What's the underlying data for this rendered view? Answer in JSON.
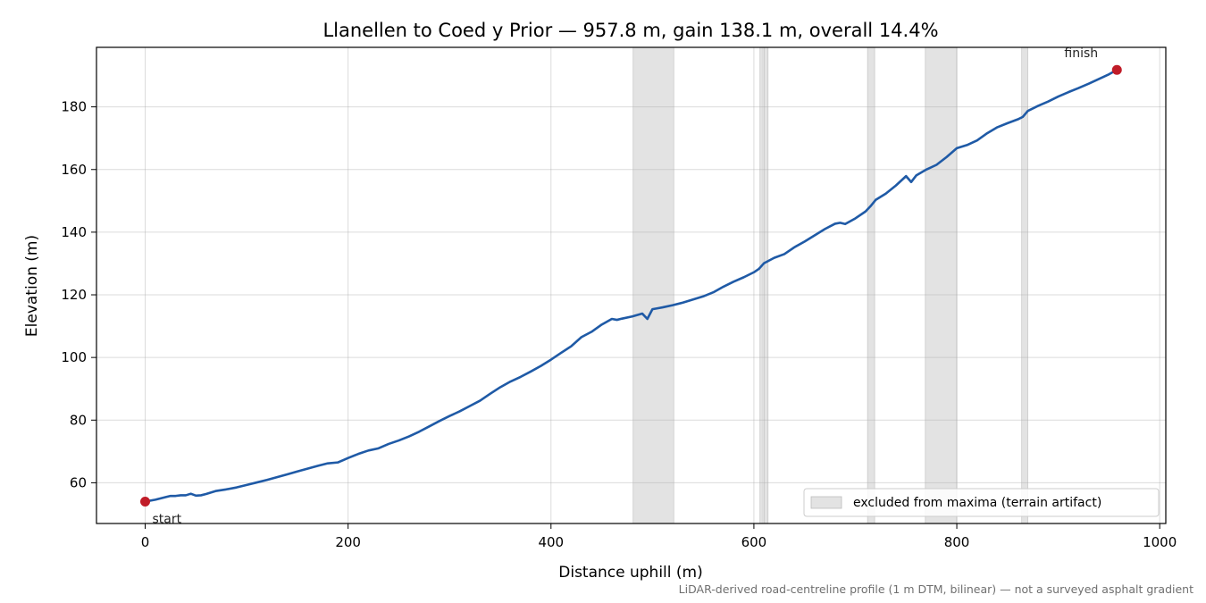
{
  "chart_data": {
    "type": "line",
    "title": "Llanellen to Coed y Prior — 957.8 m, gain 138.1 m, overall 14.4%",
    "xlabel": "Distance uphill (m)",
    "ylabel": "Elevation (m)",
    "xlim": [
      -48,
      1006
    ],
    "ylim": [
      47,
      199
    ],
    "x_ticks": [
      0,
      200,
      400,
      600,
      800,
      1000
    ],
    "y_ticks": [
      60,
      80,
      100,
      120,
      140,
      160,
      180
    ],
    "grid": true,
    "legend": {
      "position": "lower-right",
      "entries": [
        "excluded from maxima (terrain artifact)"
      ]
    },
    "series": [
      {
        "color": "#1f5aa6",
        "x": [
          0,
          10,
          20,
          25,
          30,
          35,
          40,
          45,
          50,
          55,
          60,
          70,
          80,
          90,
          100,
          110,
          120,
          130,
          140,
          150,
          160,
          170,
          180,
          190,
          195,
          200,
          210,
          220,
          230,
          240,
          250,
          260,
          270,
          280,
          290,
          300,
          310,
          320,
          330,
          340,
          350,
          360,
          370,
          380,
          390,
          400,
          410,
          420,
          430,
          440,
          450,
          460,
          465,
          470,
          480,
          490,
          495,
          500,
          505,
          510,
          520,
          530,
          540,
          550,
          560,
          570,
          580,
          590,
          600,
          605,
          610,
          620,
          630,
          640,
          650,
          660,
          670,
          680,
          685,
          690,
          700,
          710,
          715,
          720,
          730,
          740,
          750,
          755,
          760,
          770,
          780,
          790,
          800,
          810,
          820,
          830,
          840,
          850,
          860,
          865,
          870,
          880,
          890,
          900,
          910,
          920,
          930,
          940,
          950,
          957.8
        ],
        "y": [
          54.0,
          54.6,
          55.4,
          55.8,
          55.8,
          56.0,
          56.0,
          56.5,
          55.9,
          56.0,
          56.4,
          57.4,
          57.9,
          58.5,
          59.3,
          60.1,
          60.9,
          61.8,
          62.7,
          63.6,
          64.5,
          65.4,
          66.2,
          66.5,
          67.2,
          67.9,
          69.2,
          70.3,
          71.0,
          72.4,
          73.5,
          74.8,
          76.3,
          78.0,
          79.7,
          81.3,
          82.8,
          84.5,
          86.2,
          88.4,
          90.5,
          92.3,
          93.8,
          95.5,
          97.3,
          99.3,
          101.5,
          103.6,
          106.5,
          108.2,
          110.5,
          112.3,
          112.0,
          112.4,
          113.1,
          114.0,
          112.3,
          115.4,
          115.7,
          116.0,
          116.7,
          117.5,
          118.5,
          119.5,
          120.8,
          122.6,
          124.2,
          125.6,
          127.2,
          128.3,
          130.1,
          131.8,
          133.0,
          135.2,
          137.0,
          139.0,
          141.0,
          142.7,
          143.0,
          142.6,
          144.4,
          146.6,
          148.3,
          150.3,
          152.3,
          154.9,
          157.9,
          156.0,
          158.1,
          160.0,
          161.5,
          164.0,
          166.8,
          167.8,
          169.3,
          171.6,
          173.5,
          174.8,
          176.0,
          176.8,
          178.7,
          180.3,
          181.7,
          183.3,
          184.7,
          186.0,
          187.4,
          188.9,
          190.4,
          191.8
        ]
      }
    ],
    "excluded_ranges": [
      [
        481,
        521
      ],
      [
        606,
        609
      ],
      [
        610,
        614
      ],
      [
        712,
        719
      ],
      [
        769,
        800
      ],
      [
        864,
        870
      ]
    ],
    "markers": [
      {
        "x": 0,
        "y": 54.0,
        "label": "start",
        "color": "#c01c28"
      },
      {
        "x": 957.8,
        "y": 191.8,
        "label": "finish",
        "color": "#c01c28"
      }
    ],
    "footnote": "LiDAR-derived road-centreline profile (1 m DTM, bilinear) — not a surveyed asphalt gradient"
  }
}
